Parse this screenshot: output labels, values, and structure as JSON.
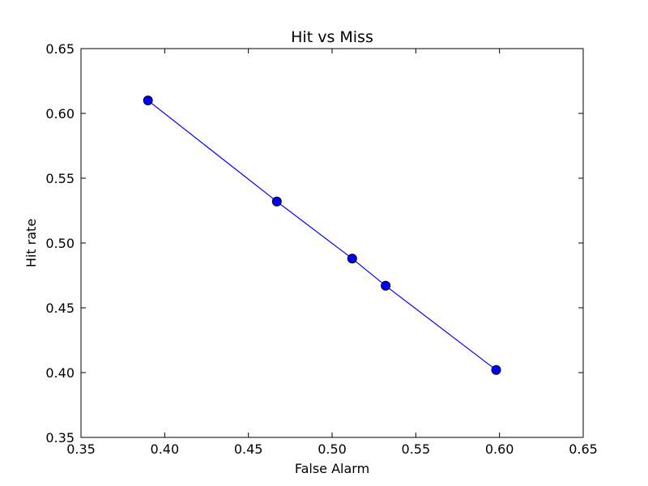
{
  "chart_data": {
    "type": "line",
    "title": "Hit vs Miss",
    "xlabel": "False Alarm",
    "ylabel": "Hit rate",
    "xlim": [
      0.35,
      0.65
    ],
    "ylim": [
      0.35,
      0.65
    ],
    "x_ticks": [
      "0.35",
      "0.40",
      "0.45",
      "0.50",
      "0.55",
      "0.60",
      "0.65"
    ],
    "y_ticks": [
      "0.35",
      "0.40",
      "0.45",
      "0.50",
      "0.55",
      "0.60",
      "0.65"
    ],
    "grid": false,
    "legend": "none",
    "series": [
      {
        "x": [
          0.39,
          0.467,
          0.512,
          0.532,
          0.598
        ],
        "y": [
          0.61,
          0.532,
          0.488,
          0.467,
          0.402
        ],
        "color": "#0000ff",
        "marker": "circle"
      }
    ]
  }
}
